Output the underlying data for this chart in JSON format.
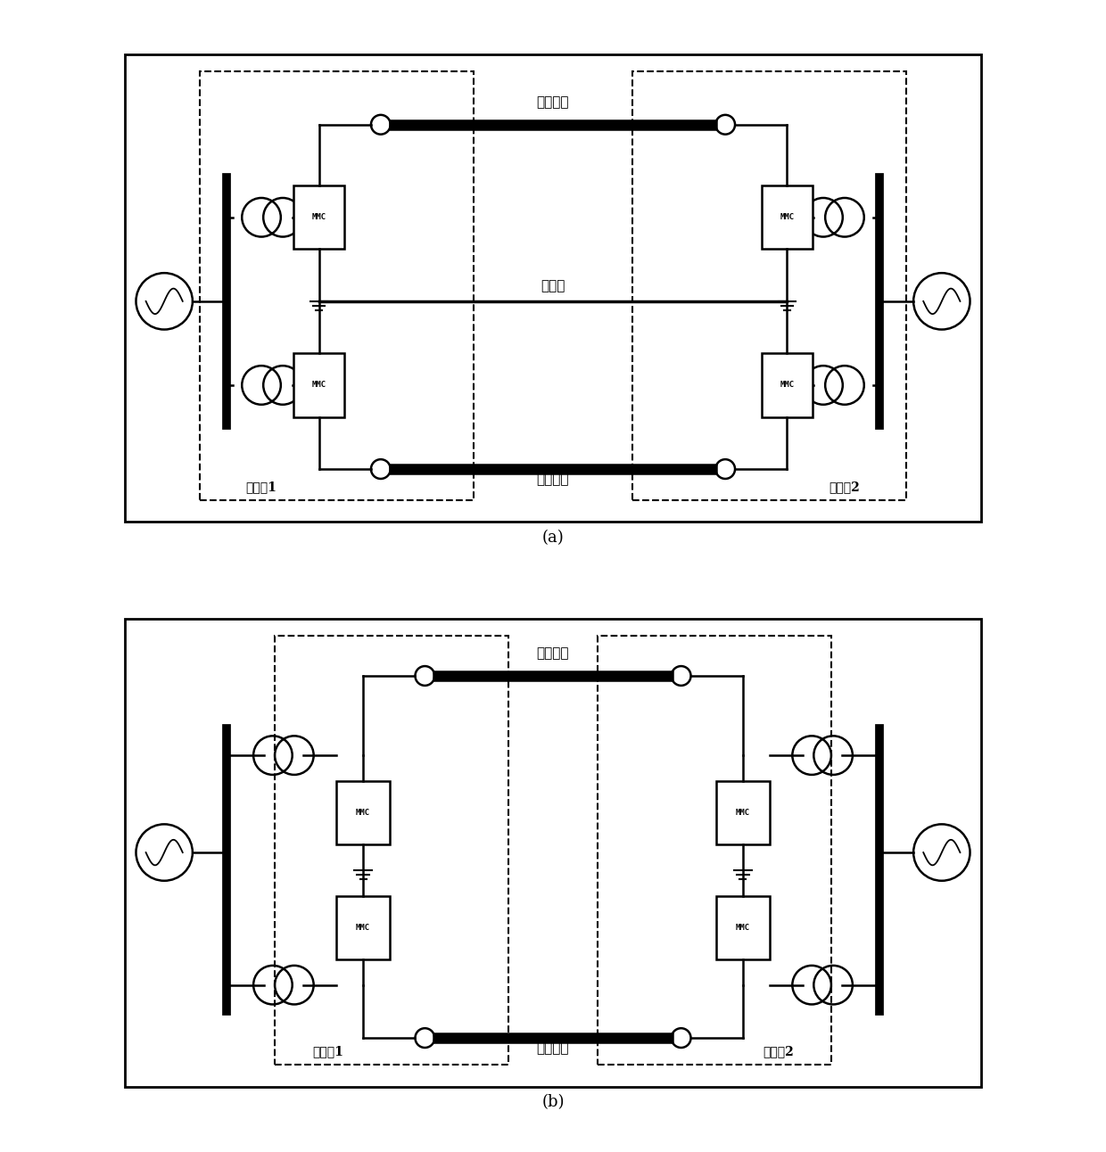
{
  "fig_width": 12.4,
  "fig_height": 12.92,
  "background_color": "#ffffff",
  "label_a": "(a)",
  "label_b": "(b)",
  "text_dc_cable_top": "直流电缆",
  "text_return_line": "回流线",
  "text_dc_cable_bot": "直流电缆",
  "text_station1": "换流站1",
  "text_station2": "换流站2",
  "text_mmc": "MMC"
}
